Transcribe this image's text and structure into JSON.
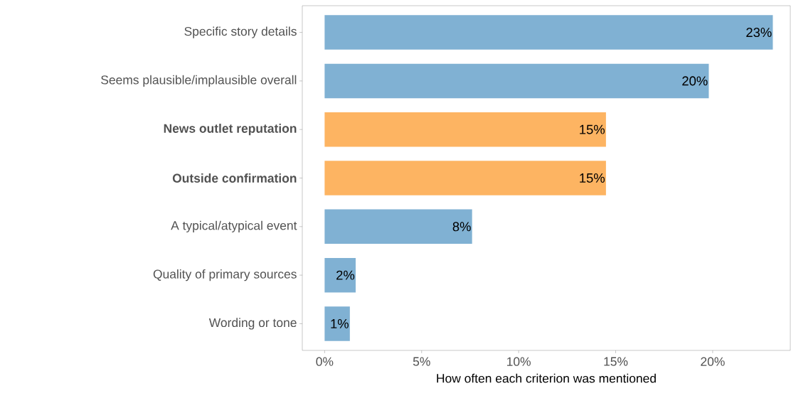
{
  "chart_data": {
    "type": "bar",
    "orientation": "horizontal",
    "xlabel": "How often each criterion was mentioned",
    "categories": [
      "Specific story details",
      "Seems plausible/implausible overall",
      "**News outlet reputation**",
      "**Outside confirmation**",
      "A typical/atypical event",
      "Quality of primary sources",
      "Wording or tone"
    ],
    "values": [
      23.1,
      19.8,
      14.5,
      14.5,
      7.6,
      1.6,
      1.3
    ],
    "value_labels": [
      "23%",
      "20%",
      "15%",
      "15%",
      "8%",
      "2%",
      "1%"
    ],
    "colors": [
      "#80b1d3",
      "#80b1d3",
      "#fdb462",
      "#fdb462",
      "#80b1d3",
      "#80b1d3",
      "#80b1d3"
    ],
    "xlim": [
      -1.15,
      24
    ],
    "xticks": [
      {
        "value": 0,
        "label": "0%"
      },
      {
        "value": 5,
        "label": "5%"
      },
      {
        "value": 10,
        "label": "10%"
      },
      {
        "value": 15,
        "label": "15%"
      },
      {
        "value": 20,
        "label": "20%"
      }
    ],
    "grid": false
  }
}
